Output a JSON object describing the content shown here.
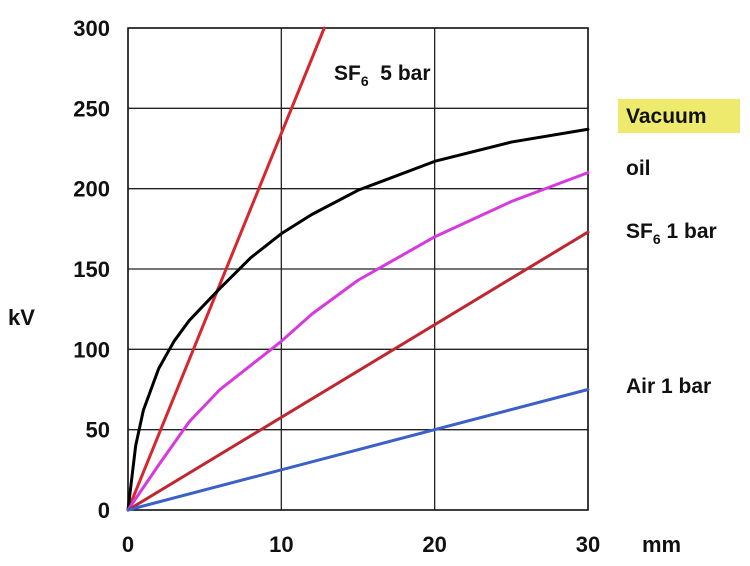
{
  "chart_data": {
    "type": "line",
    "xlabel": "mm",
    "ylabel": "kV",
    "xlim": [
      0,
      30
    ],
    "ylim": [
      0,
      300
    ],
    "xticks": [
      0,
      10,
      20,
      30
    ],
    "yticks": [
      0,
      50,
      100,
      150,
      200,
      250,
      300
    ],
    "grid": true,
    "series": [
      {
        "key": "sf6_5bar",
        "label_main": "SF",
        "label_sub": "6",
        "label_rest": "  5 bar",
        "color": "#d8262f",
        "points": [
          [
            0,
            0
          ],
          [
            12.8,
            300
          ]
        ]
      },
      {
        "key": "vacuum",
        "label_main": "Vacuum",
        "label_sub": "",
        "label_rest": "",
        "color": "#000000",
        "highlight": "#eeea6e",
        "points": [
          [
            0,
            0
          ],
          [
            0.5,
            40
          ],
          [
            1,
            62
          ],
          [
            2,
            88
          ],
          [
            3,
            105
          ],
          [
            4,
            118
          ],
          [
            5,
            128
          ],
          [
            6,
            138
          ],
          [
            8,
            157
          ],
          [
            10,
            172
          ],
          [
            12,
            184
          ],
          [
            15,
            199
          ],
          [
            20,
            217
          ],
          [
            25,
            229
          ],
          [
            30,
            237
          ]
        ]
      },
      {
        "key": "oil",
        "label_main": "oil",
        "label_sub": "",
        "label_rest": "",
        "color": "#d63adf",
        "points": [
          [
            0,
            0
          ],
          [
            2,
            28
          ],
          [
            4,
            55
          ],
          [
            6,
            75
          ],
          [
            8,
            90
          ],
          [
            10,
            105
          ],
          [
            12,
            122
          ],
          [
            15,
            143
          ],
          [
            20,
            170
          ],
          [
            25,
            192
          ],
          [
            30,
            210
          ]
        ]
      },
      {
        "key": "sf6_1bar",
        "label_main": "SF",
        "label_sub": "6",
        "label_rest": " 1 bar",
        "color": "#c0262f",
        "points": [
          [
            0,
            0
          ],
          [
            30,
            173
          ]
        ]
      },
      {
        "key": "air_1bar",
        "label_main": "Air 1 bar",
        "label_sub": "",
        "label_rest": "",
        "color": "#3b60c8",
        "points": [
          [
            0,
            0
          ],
          [
            30,
            75
          ]
        ]
      }
    ]
  }
}
